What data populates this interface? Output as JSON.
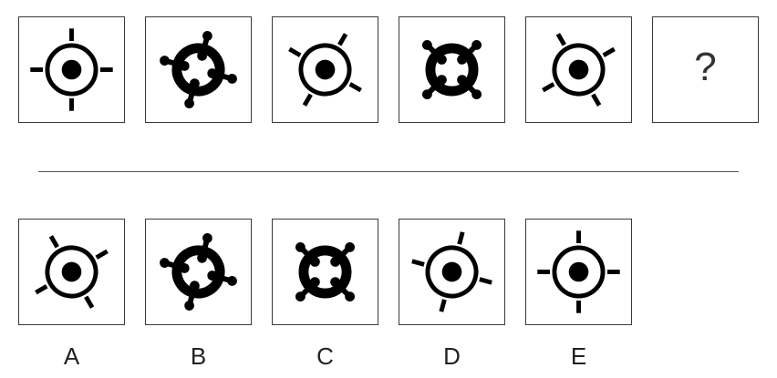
{
  "puzzle": {
    "question_mark": "?",
    "sequence": [
      {
        "icon": "crosshair-icon",
        "style": "thin-ring-dot",
        "angle": 0
      },
      {
        "icon": "bold-ring-icon",
        "style": "thick-ring-knobs",
        "angle": 15
      },
      {
        "icon": "crosshair-icon",
        "style": "thin-ring-dot",
        "angle": 30
      },
      {
        "icon": "bold-ring-icon",
        "style": "thick-ring-knobs",
        "angle": 45
      },
      {
        "icon": "crosshair-icon",
        "style": "thin-ring-dot",
        "angle": 60
      }
    ],
    "options": [
      {
        "label": "A",
        "icon": "crosshair-icon",
        "style": "thin-ring-dot",
        "angle": 60
      },
      {
        "label": "B",
        "icon": "bold-ring-icon",
        "style": "thick-ring-knobs",
        "angle": 15
      },
      {
        "label": "C",
        "icon": "bold-ring-icon",
        "style": "thick-ring-knobs",
        "angle": 45
      },
      {
        "label": "D",
        "icon": "crosshair-icon",
        "style": "thin-ring-dot",
        "angle": 15
      },
      {
        "label": "E",
        "icon": "crosshair-icon",
        "style": "thin-ring-dot",
        "angle": 0
      }
    ]
  }
}
